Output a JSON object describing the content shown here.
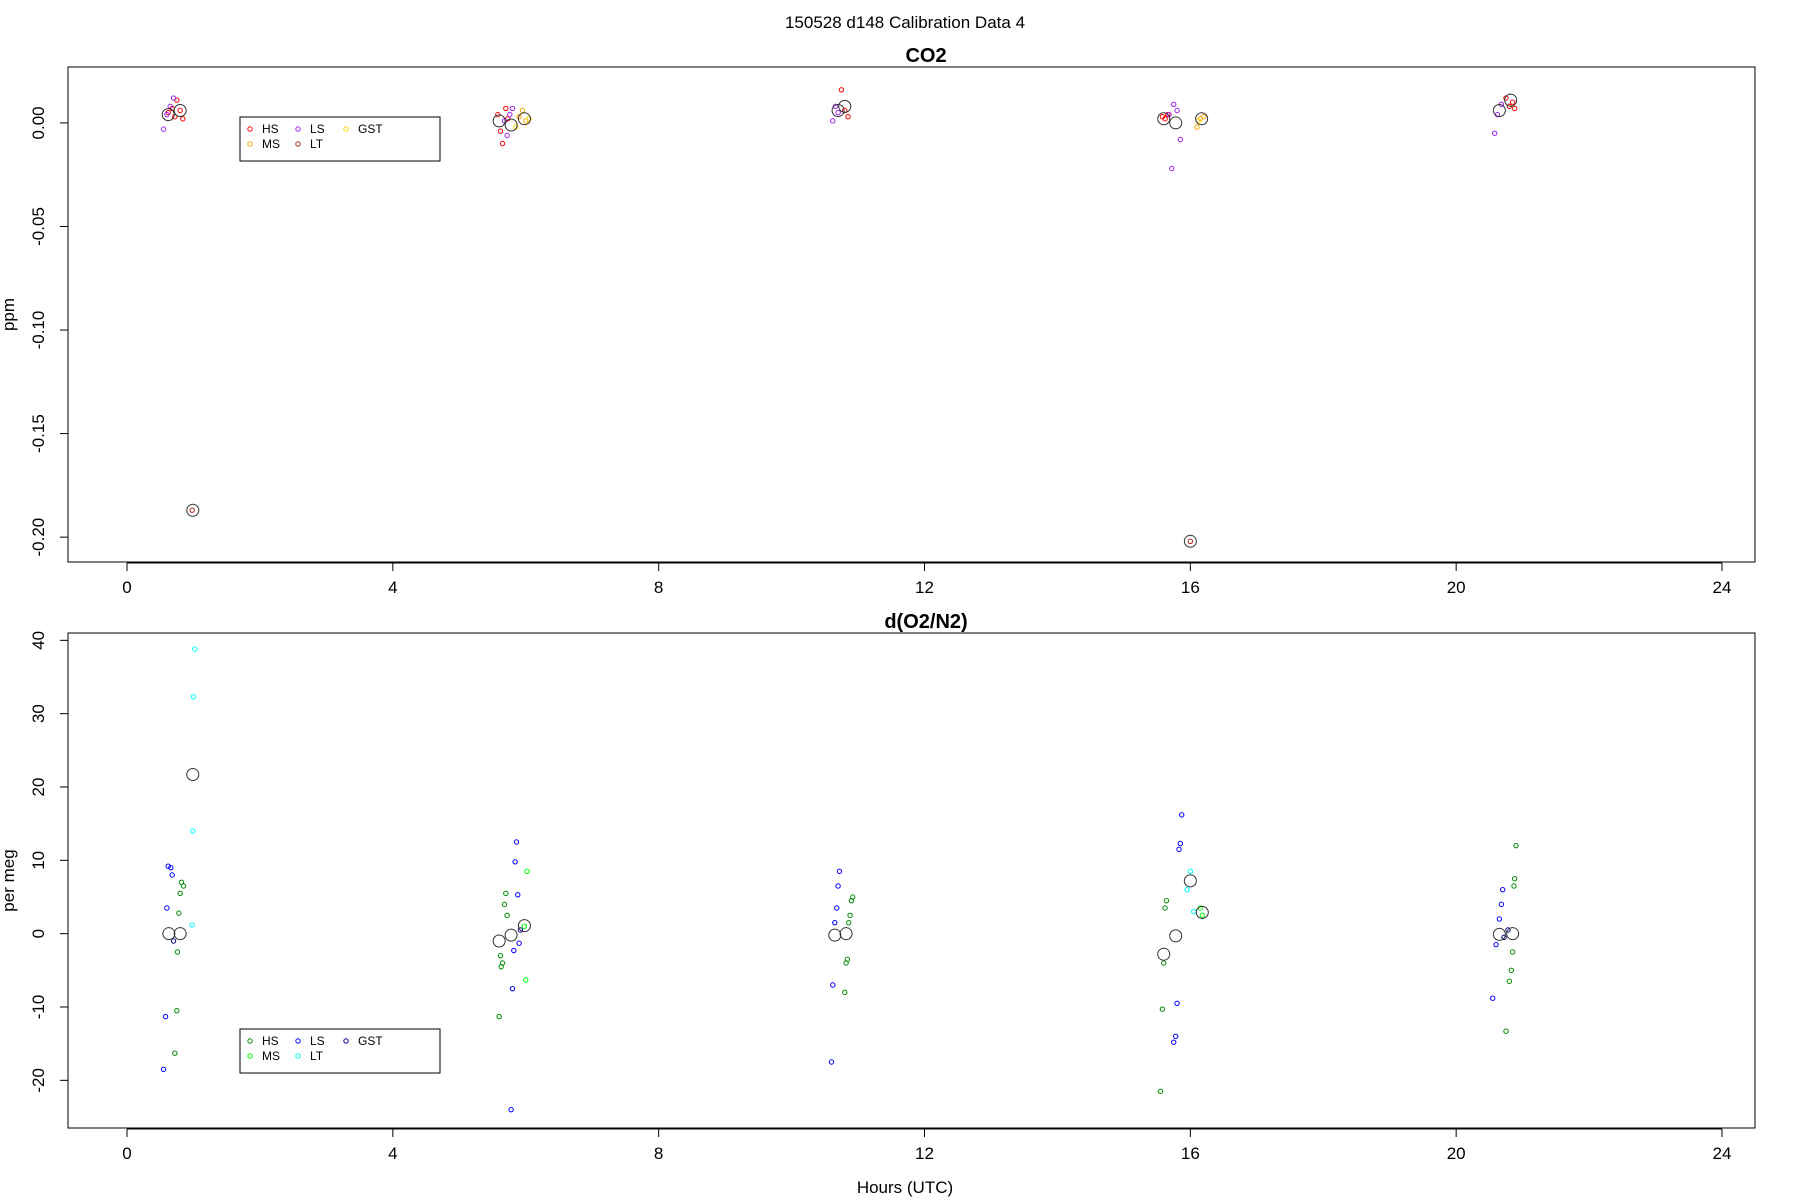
{
  "figure_title": "150528   d148   Calibration Data 4",
  "x_axis_label": "Hours (UTC)",
  "chart_data": [
    {
      "type": "scatter",
      "title": "CO2",
      "xlabel": "",
      "ylabel": "ppm",
      "xlim": [
        0,
        24
      ],
      "ylim": [
        -0.212,
        0.027
      ],
      "x_ticks": [
        0,
        4,
        8,
        12,
        16,
        20,
        24
      ],
      "y_ticks": [
        0.0,
        -0.05,
        -0.1,
        -0.15,
        -0.2
      ],
      "y_tick_labels": [
        "0.00",
        "-0.05",
        "-0.10",
        "-0.15",
        "-0.20"
      ],
      "grid": false,
      "legend": {
        "placement": "upper-left",
        "entries": [
          {
            "name": "HS",
            "color": "#ff0000"
          },
          {
            "name": "MS",
            "color": "#ffa500"
          },
          {
            "name": "LS",
            "color": "#a020f0"
          },
          {
            "name": "LT",
            "color": "#b22222"
          },
          {
            "name": "GST",
            "color": "#ffd700"
          }
        ]
      },
      "series": [
        {
          "name": "HS",
          "color": "#ff0000",
          "points": [
            [
              0.62,
              0.005
            ],
            [
              0.68,
              0.007
            ],
            [
              0.72,
              0.003
            ],
            [
              0.75,
              0.011
            ],
            [
              0.8,
              0.006
            ],
            [
              0.84,
              0.002
            ],
            [
              5.58,
              0.004
            ],
            [
              5.62,
              -0.004
            ],
            [
              5.65,
              -0.01
            ],
            [
              5.7,
              0.007
            ],
            [
              5.73,
              0.002
            ],
            [
              10.75,
              0.016
            ],
            [
              10.8,
              0.006
            ],
            [
              10.85,
              0.003
            ],
            [
              15.58,
              0.003
            ],
            [
              15.62,
              0.002
            ],
            [
              15.66,
              0.004
            ],
            [
              20.75,
              0.012
            ],
            [
              20.8,
              0.008
            ],
            [
              20.85,
              0.01
            ],
            [
              20.88,
              0.007
            ]
          ]
        },
        {
          "name": "MS",
          "color": "#ffa500",
          "points": [
            [
              5.9,
              0.003
            ],
            [
              5.95,
              0.006
            ],
            [
              6.0,
              0.001
            ],
            [
              16.1,
              -0.002
            ],
            [
              16.15,
              0.002
            ],
            [
              16.2,
              0.003
            ]
          ]
        },
        {
          "name": "LS",
          "color": "#a020f0",
          "points": [
            [
              0.55,
              -0.003
            ],
            [
              0.6,
              0.004
            ],
            [
              0.65,
              0.008
            ],
            [
              0.7,
              0.012
            ],
            [
              5.68,
              0.001
            ],
            [
              5.72,
              -0.006
            ],
            [
              5.76,
              0.004
            ],
            [
              5.8,
              0.007
            ],
            [
              10.62,
              0.001
            ],
            [
              10.66,
              0.008
            ],
            [
              10.7,
              0.005
            ],
            [
              15.68,
              0.004
            ],
            [
              15.72,
              -0.022
            ],
            [
              15.75,
              0.009
            ],
            [
              15.8,
              0.006
            ],
            [
              15.85,
              -0.008
            ],
            [
              20.58,
              -0.005
            ],
            [
              20.62,
              0.004
            ],
            [
              20.68,
              0.009
            ]
          ]
        },
        {
          "name": "LT",
          "color": "#b22222",
          "points": [
            [
              0.98,
              -0.187
            ],
            [
              16.0,
              -0.202
            ]
          ]
        },
        {
          "name": "GST",
          "color": "#ffd700",
          "points": [
            [
              5.85,
              -0.002
            ],
            [
              6.05,
              0.002
            ],
            [
              16.12,
              0.001
            ]
          ]
        }
      ],
      "means": [
        [
          0.62,
          0.004
        ],
        [
          0.8,
          0.006
        ],
        [
          0.99,
          -0.187
        ],
        [
          5.6,
          0.001
        ],
        [
          5.78,
          -0.001
        ],
        [
          5.98,
          0.002
        ],
        [
          10.7,
          0.006
        ],
        [
          10.8,
          0.008
        ],
        [
          15.6,
          0.002
        ],
        [
          15.78,
          0.0
        ],
        [
          16.0,
          -0.202
        ],
        [
          16.17,
          0.002
        ],
        [
          20.65,
          0.006
        ],
        [
          20.82,
          0.011
        ]
      ]
    },
    {
      "type": "scatter",
      "title": "d(O2/N2)",
      "xlabel": "Hours (UTC)",
      "ylabel": "per meg",
      "xlim": [
        0,
        24
      ],
      "ylim": [
        -26.5,
        41
      ],
      "x_ticks": [
        0,
        4,
        8,
        12,
        16,
        20,
        24
      ],
      "y_ticks": [
        40,
        30,
        20,
        10,
        0,
        -10,
        -20
      ],
      "y_tick_labels": [
        "40",
        "30",
        "20",
        "10",
        "0",
        "-10",
        "-20"
      ],
      "grid": false,
      "legend": {
        "placement": "lower-left",
        "entries": [
          {
            "name": "HS",
            "color": "#008b00"
          },
          {
            "name": "MS",
            "color": "#00ff00"
          },
          {
            "name": "LS",
            "color": "#0000ff"
          },
          {
            "name": "LT",
            "color": "#00ffff"
          },
          {
            "name": "GST",
            "color": "#00008b"
          }
        ]
      },
      "series": [
        {
          "name": "HS",
          "color": "#008b00",
          "points": [
            [
              0.72,
              -16.3
            ],
            [
              0.75,
              -10.5
            ],
            [
              0.76,
              -2.5
            ],
            [
              0.8,
              5.5
            ],
            [
              0.82,
              7.0
            ],
            [
              0.85,
              6.5
            ],
            [
              0.78,
              2.8
            ],
            [
              5.6,
              -11.3
            ],
            [
              5.63,
              -4.5
            ],
            [
              5.62,
              -3.0
            ],
            [
              5.65,
              -4.0
            ],
            [
              5.68,
              4.0
            ],
            [
              5.7,
              5.5
            ],
            [
              5.72,
              2.5
            ],
            [
              10.8,
              -8.0
            ],
            [
              10.82,
              -4.0
            ],
            [
              10.84,
              -3.5
            ],
            [
              10.86,
              1.5
            ],
            [
              10.88,
              2.5
            ],
            [
              10.9,
              4.5
            ],
            [
              10.92,
              5.0
            ],
            [
              15.55,
              -21.5
            ],
            [
              15.58,
              -10.3
            ],
            [
              15.6,
              -4.0
            ],
            [
              15.62,
              3.5
            ],
            [
              15.64,
              4.5
            ],
            [
              20.75,
              -13.3
            ],
            [
              20.8,
              -6.5
            ],
            [
              20.83,
              -5.0
            ],
            [
              20.85,
              -2.5
            ],
            [
              20.87,
              6.5
            ],
            [
              20.88,
              7.5
            ],
            [
              20.9,
              12.0
            ]
          ]
        },
        {
          "name": "MS",
          "color": "#00ff00",
          "points": [
            [
              6.0,
              -6.3
            ],
            [
              6.02,
              8.5
            ],
            [
              5.98,
              1.0
            ],
            [
              16.15,
              3.5
            ],
            [
              16.18,
              2.5
            ]
          ]
        },
        {
          "name": "LS",
          "color": "#0000ff",
          "points": [
            [
              0.55,
              -18.5
            ],
            [
              0.58,
              -11.3
            ],
            [
              0.6,
              3.5
            ],
            [
              0.62,
              9.2
            ],
            [
              0.66,
              9.0
            ],
            [
              0.68,
              8.0
            ],
            [
              5.78,
              -24.0
            ],
            [
              5.8,
              -7.5
            ],
            [
              5.82,
              -2.3
            ],
            [
              5.84,
              9.8
            ],
            [
              5.86,
              12.5
            ],
            [
              5.88,
              5.3
            ],
            [
              5.9,
              -1.3
            ],
            [
              10.6,
              -17.5
            ],
            [
              10.62,
              -7.0
            ],
            [
              10.65,
              1.5
            ],
            [
              10.68,
              3.5
            ],
            [
              10.7,
              6.5
            ],
            [
              10.72,
              8.5
            ],
            [
              15.75,
              -14.8
            ],
            [
              15.78,
              -14.0
            ],
            [
              15.8,
              -9.5
            ],
            [
              15.83,
              11.5
            ],
            [
              15.85,
              12.3
            ],
            [
              15.87,
              16.2
            ],
            [
              20.55,
              -8.8
            ],
            [
              20.6,
              -1.5
            ],
            [
              20.65,
              2.0
            ],
            [
              20.68,
              4.0
            ],
            [
              20.7,
              6.0
            ]
          ]
        },
        {
          "name": "LT",
          "color": "#00ffff",
          "points": [
            [
              0.98,
              1.2
            ],
            [
              0.99,
              14.0
            ],
            [
              1.0,
              32.3
            ],
            [
              1.02,
              38.8
            ],
            [
              15.95,
              6.0
            ],
            [
              16.0,
              8.5
            ],
            [
              16.05,
              3.0
            ]
          ]
        },
        {
          "name": "GST",
          "color": "#00008b",
          "points": [
            [
              0.7,
              -1.0
            ],
            [
              5.92,
              0.5
            ],
            [
              20.72,
              -0.5
            ],
            [
              20.78,
              0.5
            ]
          ]
        }
      ],
      "means": [
        [
          0.63,
          0.0
        ],
        [
          0.8,
          0.0
        ],
        [
          0.99,
          21.7
        ],
        [
          5.6,
          -1.0
        ],
        [
          5.78,
          -0.2
        ],
        [
          5.98,
          1.1
        ],
        [
          10.65,
          -0.2
        ],
        [
          10.82,
          0.0
        ],
        [
          15.6,
          -2.8
        ],
        [
          15.78,
          -0.3
        ],
        [
          16.0,
          7.2
        ],
        [
          16.18,
          2.9
        ],
        [
          20.65,
          -0.1
        ],
        [
          20.85,
          0.0
        ]
      ]
    }
  ]
}
